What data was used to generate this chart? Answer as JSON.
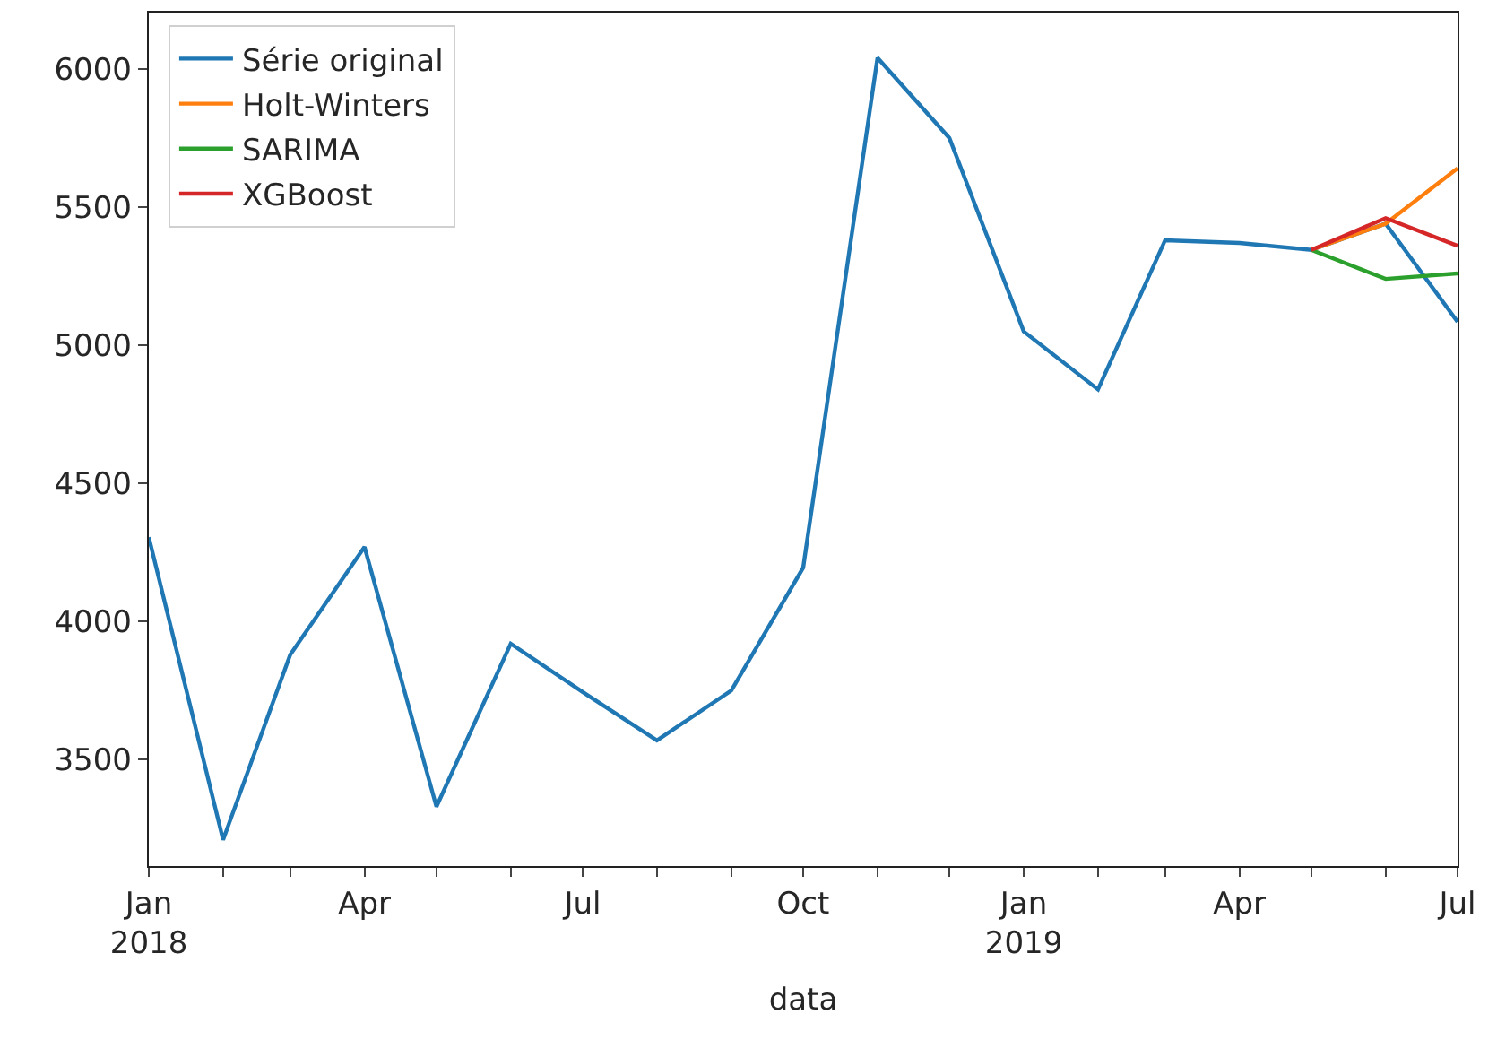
{
  "chart_data": {
    "type": "line",
    "xlabel": "data",
    "legend": "top left",
    "xlim": [
      "2018-01",
      "2019-07"
    ],
    "ylim": [
      3115,
      6204
    ],
    "yticks": [
      3500,
      4000,
      4500,
      5000,
      5500,
      6000
    ],
    "xticks": [
      {
        "value": "2018-01",
        "label": "Jan\n2018"
      },
      {
        "value": "2018-02",
        "label": null
      },
      {
        "value": "2018-03",
        "label": null
      },
      {
        "value": "2018-04",
        "label": "Apr"
      },
      {
        "value": "2018-05",
        "label": null
      },
      {
        "value": "2018-06",
        "label": null
      },
      {
        "value": "2018-07",
        "label": "Jul"
      },
      {
        "value": "2018-08",
        "label": null
      },
      {
        "value": "2018-09",
        "label": null
      },
      {
        "value": "2018-10",
        "label": "Oct"
      },
      {
        "value": "2018-11",
        "label": null
      },
      {
        "value": "2018-12",
        "label": null
      },
      {
        "value": "2019-01",
        "label": "Jan\n2019"
      },
      {
        "value": "2019-02",
        "label": null
      },
      {
        "value": "2019-03",
        "label": null
      },
      {
        "value": "2019-04",
        "label": "Apr"
      },
      {
        "value": "2019-05",
        "label": null
      },
      {
        "value": "2019-06",
        "label": null
      },
      {
        "value": "2019-07",
        "label": "Jul"
      }
    ],
    "series": [
      {
        "name": "Série original",
        "color": "#1f77b4",
        "x": [
          "2018-01",
          "2018-02",
          "2018-03",
          "2018-04",
          "2018-05",
          "2018-06",
          "2018-07",
          "2018-08",
          "2018-09",
          "2018-10",
          "2018-11",
          "2018-12",
          "2019-01",
          "2019-02",
          "2019-03",
          "2019-04",
          "2019-05",
          "2019-06",
          "2019-07"
        ],
        "values": [
          4305,
          3210,
          3880,
          4270,
          3330,
          3920,
          3745,
          3570,
          3750,
          4195,
          6040,
          5750,
          5050,
          4840,
          5380,
          5370,
          5345,
          5440,
          5085
        ]
      },
      {
        "name": "Holt-Winters",
        "color": "#ff7f0e",
        "x": [
          "2019-05",
          "2019-06",
          "2019-07"
        ],
        "values": [
          5345,
          5440,
          5640
        ]
      },
      {
        "name": "SARIMA",
        "color": "#2ca02c",
        "x": [
          "2019-05",
          "2019-06",
          "2019-07"
        ],
        "values": [
          5345,
          5240,
          5260
        ]
      },
      {
        "name": "XGBoost",
        "color": "#d62728",
        "x": [
          "2019-05",
          "2019-06",
          "2019-07"
        ],
        "values": [
          5345,
          5460,
          5360
        ]
      }
    ]
  }
}
